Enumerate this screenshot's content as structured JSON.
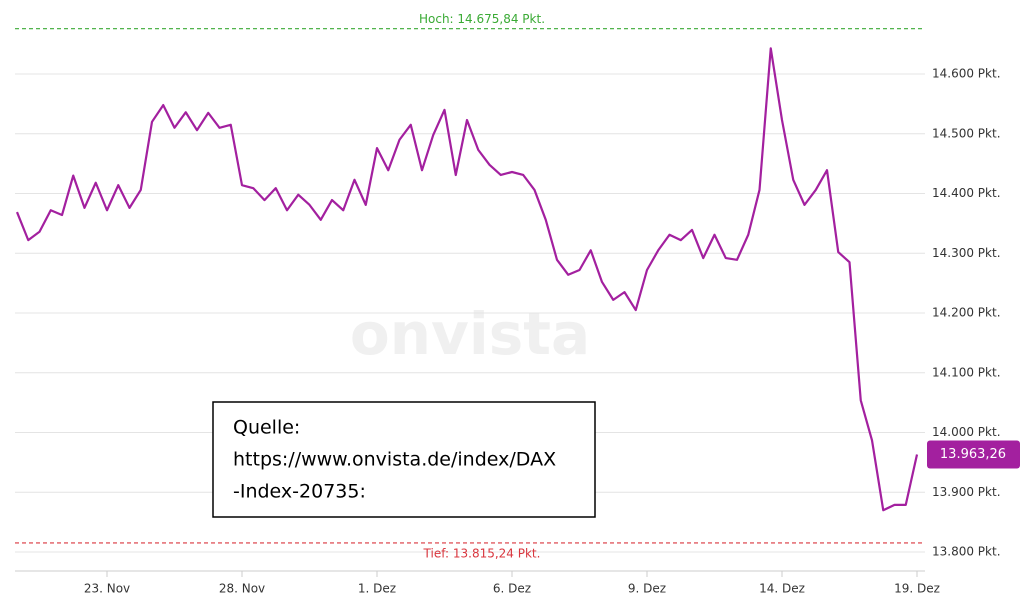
{
  "chart_data": {
    "type": "line",
    "categories": [
      null,
      null,
      null,
      null,
      null,
      null,
      null,
      null,
      "23. Nov",
      null,
      null,
      null,
      null,
      null,
      null,
      null,
      null,
      null,
      null,
      null,
      "28. Nov",
      null,
      null,
      null,
      null,
      null,
      null,
      null,
      null,
      null,
      null,
      null,
      "1. Dez",
      null,
      null,
      null,
      null,
      null,
      null,
      null,
      null,
      null,
      null,
      null,
      "6. Dez",
      null,
      null,
      null,
      null,
      null,
      null,
      null,
      null,
      null,
      null,
      null,
      "9. Dez",
      null,
      null,
      null,
      null,
      null,
      null,
      null,
      null,
      null,
      null,
      null,
      "14. Dez",
      null,
      null,
      null,
      null,
      null,
      null,
      null,
      null,
      null,
      null,
      null,
      "19. Dez"
    ],
    "values": [
      14369,
      14322,
      14336,
      14372,
      14364,
      14430,
      14376,
      14418,
      14372,
      14414,
      14376,
      14406,
      14520,
      14548,
      14510,
      14536,
      14506,
      14535,
      14510,
      14515,
      14414,
      14409,
      14389,
      14409,
      14372,
      14398,
      14381,
      14356,
      14389,
      14372,
      14423,
      14381,
      14476,
      14439,
      14490,
      14515,
      14439,
      14498,
      14540,
      14431,
      14523,
      14473,
      14448,
      14431,
      14436,
      14431,
      14406,
      14356,
      14289,
      14264,
      14272,
      14305,
      14252,
      14222,
      14235,
      14205,
      14272,
      14305,
      14331,
      14322,
      14339,
      14292,
      14331,
      14292,
      14289,
      14331,
      14406,
      14643,
      14523,
      14423,
      14381,
      14406,
      14439,
      14302,
      14285,
      14054,
      13987,
      13870,
      13879,
      13879,
      13963.26
    ],
    "value_labels": [
      null,
      null,
      null,
      null,
      null,
      null,
      null,
      null,
      null,
      null,
      null,
      null,
      null,
      null,
      null,
      null,
      null,
      null,
      null,
      null,
      null,
      null,
      null,
      null,
      null,
      null,
      null,
      null,
      null,
      null,
      null,
      null,
      null,
      null,
      null,
      null,
      null,
      null,
      null,
      null,
      null,
      null,
      null,
      null,
      null,
      null,
      null,
      null,
      null,
      null,
      null,
      null,
      null,
      null,
      null,
      null,
      null,
      null,
      null,
      null,
      null,
      null,
      null,
      null,
      null,
      null,
      null,
      null,
      null,
      null,
      null,
      null,
      null,
      null,
      null,
      null,
      null,
      null,
      null,
      null,
      "13.963,26"
    ],
    "color": "#a3209f",
    "ylim": [
      13780,
      14700
    ],
    "yticks": [
      {
        "value": 13800,
        "label": "13.800 Pkt."
      },
      {
        "value": 13900,
        "label": "13.900 Pkt."
      },
      {
        "value": 14000,
        "label": "14.000 Pkt."
      },
      {
        "value": 14100,
        "label": "14.100 Pkt."
      },
      {
        "value": 14200,
        "label": "14.200 Pkt."
      },
      {
        "value": 14300,
        "label": "14.300 Pkt."
      },
      {
        "value": 14400,
        "label": "14.400 Pkt."
      },
      {
        "value": 14500,
        "label": "14.500 Pkt."
      },
      {
        "value": 14600,
        "label": "14.600 Pkt."
      }
    ],
    "grid": true,
    "reference_lines": [
      {
        "value": 14675.84,
        "label": "Hoch: 14.675,84 Pkt.",
        "color": "#3aaa35"
      },
      {
        "value": 13815.24,
        "label": "Tief: 13.815,24 Pkt.",
        "color": "#d9363e"
      }
    ],
    "watermark": "onvista"
  },
  "source_box": {
    "lines": [
      "Quelle:",
      "https://www.onvista.de/index/DAX",
      "-Index-20735:"
    ]
  }
}
